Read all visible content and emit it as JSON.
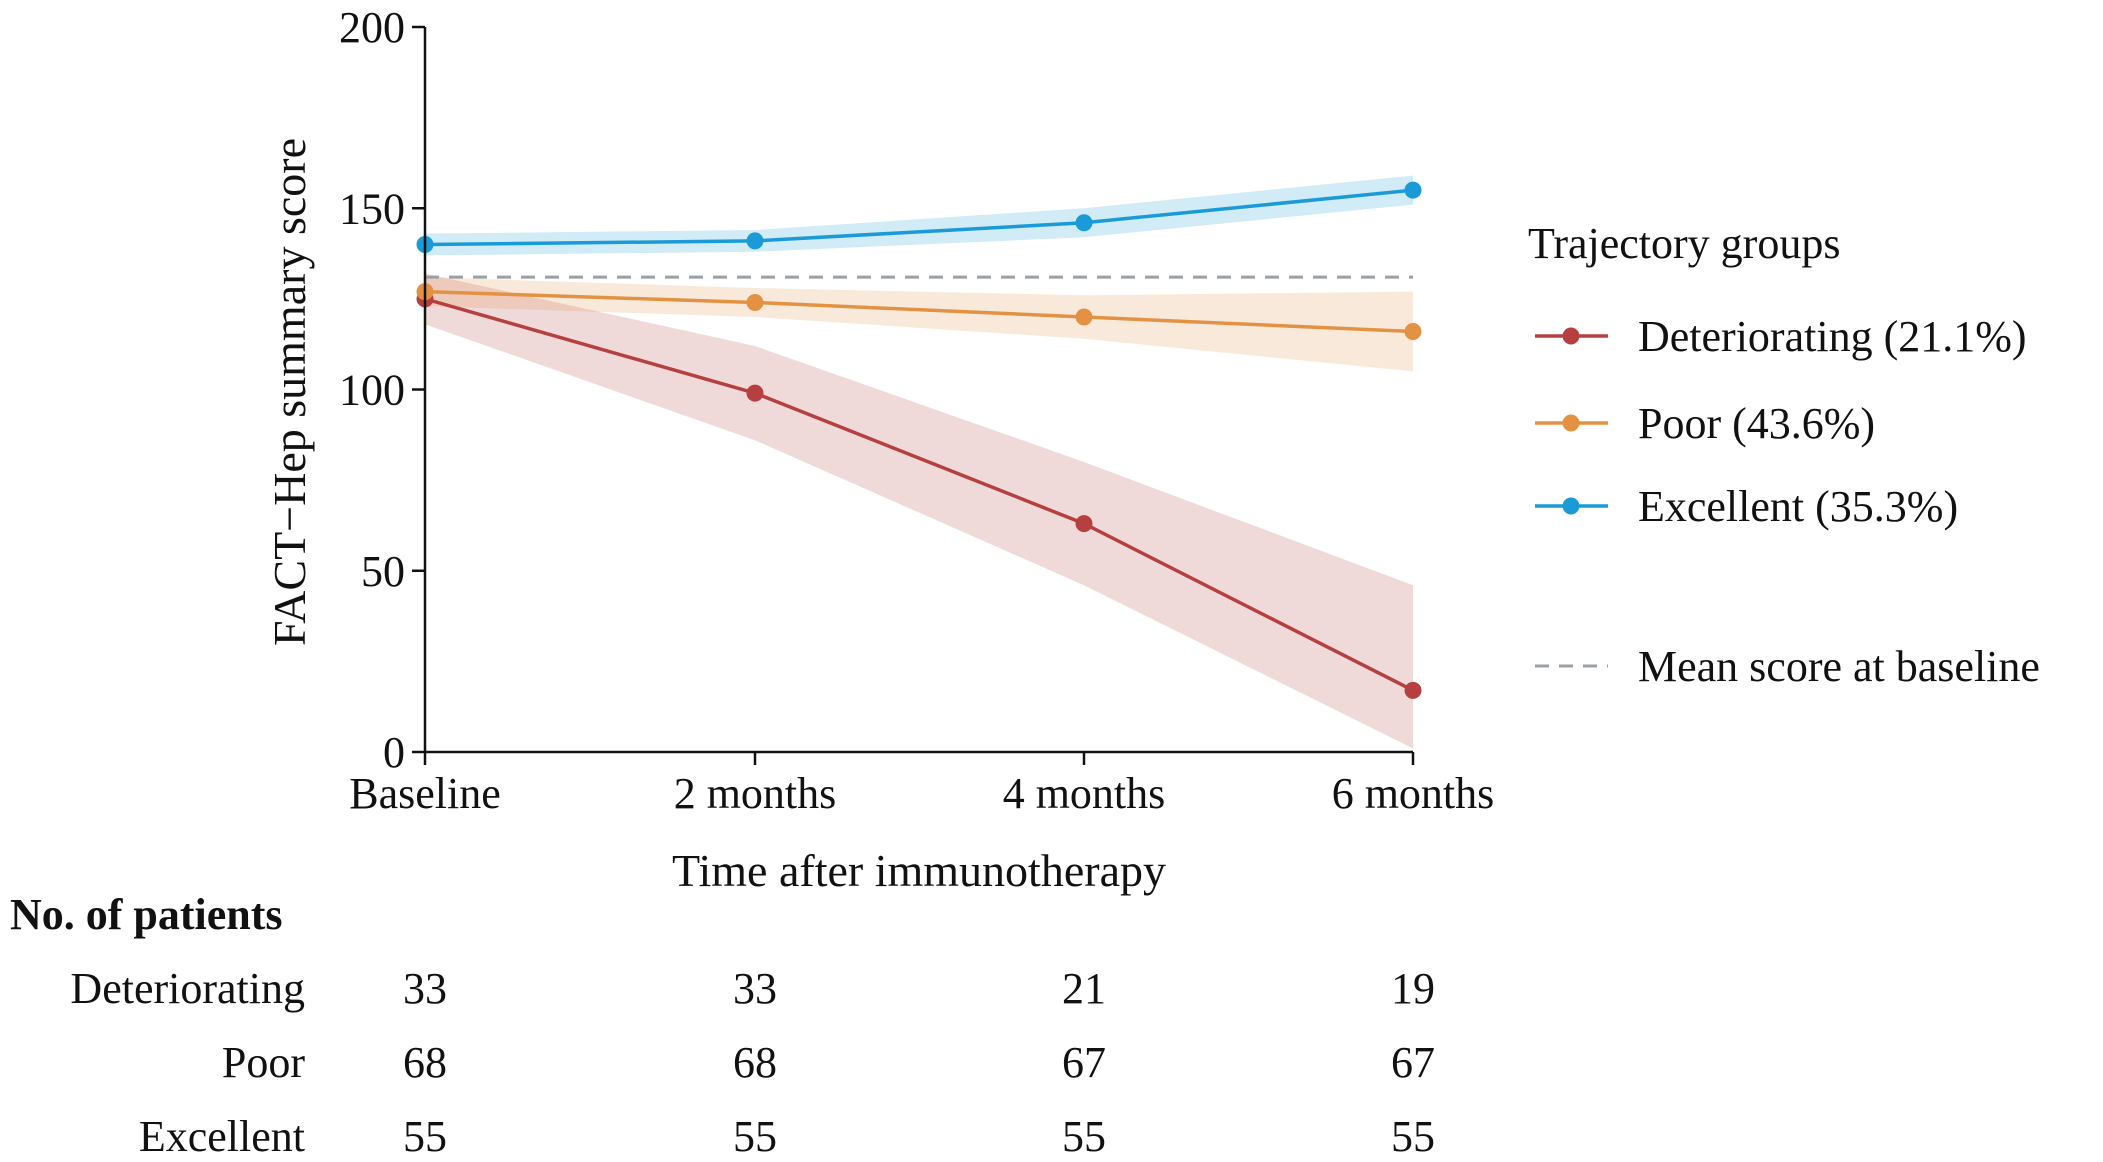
{
  "chart_data": {
    "type": "line",
    "x": [
      "Baseline",
      "2 months",
      "4 months",
      "6 months"
    ],
    "xlabel": "Time after immunotherapy",
    "ylabel": "FACT−Hep summary score",
    "ylim": [
      0,
      200
    ],
    "yticks": [
      "0",
      "50",
      "100",
      "150",
      "200"
    ],
    "series": [
      {
        "name": "Deteriorating",
        "legend_label": "Deteriorating (21.1%)",
        "color": "#b5403f",
        "values": [
          125,
          99,
          63,
          17
        ],
        "ci_lower": [
          118,
          86,
          46,
          1
        ],
        "ci_upper": [
          132,
          112,
          80,
          46
        ]
      },
      {
        "name": "Poor",
        "legend_label": "Poor (43.6%)",
        "color": "#e39244",
        "values": [
          127,
          124,
          120,
          116
        ],
        "ci_lower": [
          123,
          120,
          114,
          105
        ],
        "ci_upper": [
          131,
          128,
          126,
          127
        ]
      },
      {
        "name": "Excellent",
        "legend_label": "Excellent (35.3%)",
        "color": "#1a9bd7",
        "values": [
          140,
          141,
          146,
          155
        ],
        "ci_lower": [
          137,
          138,
          142,
          151
        ],
        "ci_upper": [
          143,
          144,
          150,
          159
        ]
      }
    ],
    "reference_line": {
      "label": "Mean score at baseline",
      "value": 131,
      "color": "#9aa1a6"
    },
    "legend_title": "Trajectory groups",
    "legend_position": "right"
  },
  "risk_table": {
    "title": "No. of patients",
    "rows": [
      {
        "label": "Deteriorating",
        "values": [
          "33",
          "33",
          "21",
          "19"
        ]
      },
      {
        "label": "Poor",
        "values": [
          "68",
          "68",
          "67",
          "67"
        ]
      },
      {
        "label": "Excellent",
        "values": [
          "55",
          "55",
          "55",
          "55"
        ]
      }
    ]
  }
}
